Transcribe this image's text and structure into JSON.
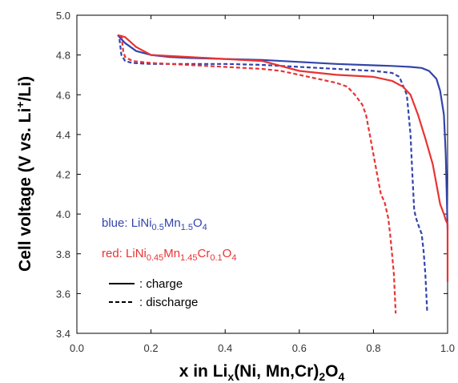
{
  "chart_data": {
    "type": "line",
    "xlim": [
      0.0,
      1.0
    ],
    "ylim": [
      3.4,
      5.0
    ],
    "x_ticks": [
      0.0,
      0.2,
      0.4,
      0.6,
      0.8,
      1.0
    ],
    "x_tick_labels": [
      "0.0",
      "0.2",
      "0.4",
      "0.6",
      "0.8",
      "1.0"
    ],
    "y_ticks": [
      3.4,
      3.6,
      3.8,
      4.0,
      4.2,
      4.4,
      4.6,
      4.8,
      5.0
    ],
    "y_tick_labels": [
      "3.4",
      "3.6",
      "3.8",
      "4.0",
      "4.2",
      "4.4",
      "4.6",
      "4.8",
      "5.0"
    ],
    "xlabel": {
      "main": "x in Li",
      "sub1": "x",
      "mid": "(Ni, Mn,Cr)",
      "sub2": "2",
      "end": "O",
      "sub3": "4"
    },
    "ylabel": {
      "main": "Cell voltage (V vs. Li",
      "sup": "+",
      "end": "/Li)"
    },
    "grid": false,
    "legend": {
      "placement": "lower-left",
      "blue": {
        "prefix": "blue: LiNi",
        "s1": "0.5",
        "m1": "Mn",
        "s2": "1.5",
        "m2": "O",
        "s3": "4",
        "color": "#3344aa"
      },
      "red": {
        "prefix": "red: LiNi",
        "s1": "0.45",
        "m1": "Mn",
        "s2": "1.45",
        "m2": "Cr",
        "s3": "0.1",
        "m3": "O",
        "s4": "4",
        "color": "#e83333"
      },
      "charge_label": ": charge",
      "discharge_label": ": discharge"
    },
    "series": [
      {
        "color": "#3344aa",
        "style": "solid",
        "x": [
          0.11,
          0.13,
          0.16,
          0.2,
          0.25,
          0.3,
          0.4,
          0.5,
          0.6,
          0.7,
          0.8,
          0.85,
          0.9,
          0.93,
          0.95,
          0.97,
          0.98,
          0.99,
          0.995,
          1.0
        ],
        "y": [
          4.9,
          4.86,
          4.82,
          4.8,
          4.79,
          4.785,
          4.78,
          4.775,
          4.765,
          4.755,
          4.748,
          4.745,
          4.74,
          4.735,
          4.72,
          4.68,
          4.62,
          4.5,
          4.3,
          3.92
        ]
      },
      {
        "color": "#3344aa",
        "style": "dashed",
        "x": [
          0.115,
          0.12,
          0.13,
          0.15,
          0.2,
          0.3,
          0.4,
          0.5,
          0.6,
          0.7,
          0.8,
          0.85,
          0.87,
          0.89,
          0.9,
          0.905,
          0.91,
          0.915,
          0.92,
          0.93,
          0.935,
          0.94,
          0.945
        ],
        "y": [
          4.88,
          4.8,
          4.77,
          4.76,
          4.755,
          4.755,
          4.755,
          4.75,
          4.74,
          4.73,
          4.72,
          4.71,
          4.69,
          4.6,
          4.4,
          4.2,
          4.02,
          3.98,
          3.95,
          3.9,
          3.82,
          3.7,
          3.51
        ]
      },
      {
        "color": "#e83333",
        "style": "solid",
        "x": [
          0.11,
          0.13,
          0.16,
          0.2,
          0.3,
          0.4,
          0.5,
          0.6,
          0.7,
          0.8,
          0.85,
          0.88,
          0.9,
          0.92,
          0.94,
          0.96,
          0.97,
          0.98,
          0.99,
          0.995,
          1.0,
          1.0
        ],
        "y": [
          4.9,
          4.89,
          4.84,
          4.8,
          4.79,
          4.78,
          4.77,
          4.72,
          4.7,
          4.69,
          4.67,
          4.64,
          4.6,
          4.5,
          4.38,
          4.25,
          4.15,
          4.05,
          4.0,
          3.97,
          3.95,
          3.66
        ]
      },
      {
        "color": "#e83333",
        "style": "dashed",
        "x": [
          0.12,
          0.125,
          0.13,
          0.15,
          0.2,
          0.3,
          0.4,
          0.5,
          0.55,
          0.6,
          0.65,
          0.7,
          0.73,
          0.75,
          0.77,
          0.78,
          0.79,
          0.8,
          0.81,
          0.82,
          0.83,
          0.84,
          0.845,
          0.85,
          0.855,
          0.86
        ],
        "y": [
          4.9,
          4.82,
          4.79,
          4.77,
          4.76,
          4.75,
          4.74,
          4.73,
          4.72,
          4.7,
          4.68,
          4.66,
          4.64,
          4.6,
          4.55,
          4.5,
          4.4,
          4.3,
          4.2,
          4.1,
          4.06,
          3.98,
          3.9,
          3.8,
          3.7,
          3.5
        ]
      }
    ]
  }
}
